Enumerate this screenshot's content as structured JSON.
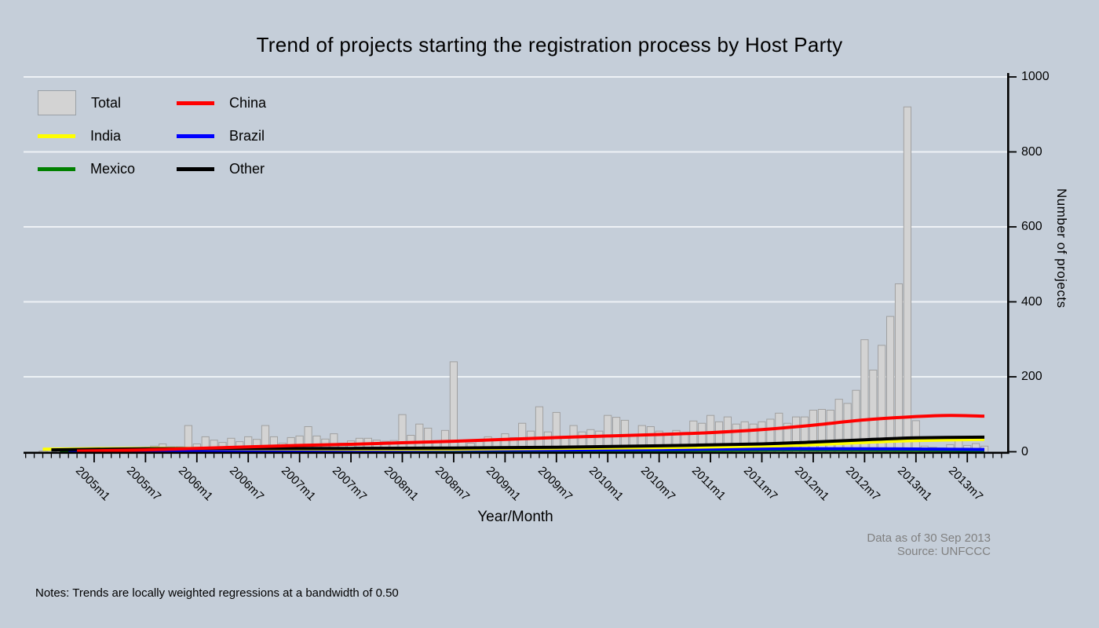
{
  "title": "Trend of projects starting the registration process by Host Party",
  "notes": "Notes: Trends are locally weighted regressions at a bandwidth of 0.50",
  "captions": {
    "data_as_of": "Data as of 30 Sep 2013",
    "source": "Source: UNFCCC"
  },
  "colors": {
    "background": "#c5ced9",
    "grid": "#eef2f6",
    "axis": "#000000",
    "bar_fill": "#d3d3d3",
    "bar_stroke": "#a0a0a0",
    "caption_text": "#808080"
  },
  "legend": {
    "items": [
      {
        "label": "Total",
        "type": "bar",
        "color": "#d3d3d3"
      },
      {
        "label": "China",
        "type": "line",
        "color": "#ff0000"
      },
      {
        "label": "India",
        "type": "line",
        "color": "#ffff00"
      },
      {
        "label": "Brazil",
        "type": "line",
        "color": "#0000ff"
      },
      {
        "label": "Mexico",
        "type": "line",
        "color": "#008000"
      },
      {
        "label": "Other",
        "type": "line",
        "color": "#000000"
      }
    ]
  },
  "chart_data": {
    "type": "bar",
    "title": "Trend of projects starting the registration process by Host Party",
    "xlabel": "Year/Month",
    "ylabel": "Number of projects",
    "ylim": [
      0,
      1000
    ],
    "yticks": [
      0,
      200,
      400,
      600,
      800,
      1000
    ],
    "grid": true,
    "legend_position": "top-left",
    "x_tick_labels": [
      "2005m1",
      "2005m7",
      "2006m1",
      "2006m7",
      "2007m1",
      "2007m7",
      "2008m1",
      "2008m7",
      "2009m1",
      "2009m7",
      "2010m1",
      "2010m7",
      "2011m1",
      "2011m7",
      "2012m1",
      "2012m7",
      "2013m1",
      "2013m7"
    ],
    "categories": [
      "2004m7",
      "2004m8",
      "2004m9",
      "2004m10",
      "2004m11",
      "2004m12",
      "2005m1",
      "2005m2",
      "2005m3",
      "2005m4",
      "2005m5",
      "2005m6",
      "2005m7",
      "2005m8",
      "2005m9",
      "2005m10",
      "2005m11",
      "2005m12",
      "2006m1",
      "2006m2",
      "2006m3",
      "2006m4",
      "2006m5",
      "2006m6",
      "2006m7",
      "2006m8",
      "2006m9",
      "2006m10",
      "2006m11",
      "2006m12",
      "2007m1",
      "2007m2",
      "2007m3",
      "2007m4",
      "2007m5",
      "2007m6",
      "2007m7",
      "2007m8",
      "2007m9",
      "2007m10",
      "2007m11",
      "2007m12",
      "2008m1",
      "2008m2",
      "2008m3",
      "2008m4",
      "2008m5",
      "2008m6",
      "2008m7",
      "2008m8",
      "2008m9",
      "2008m10",
      "2008m11",
      "2008m12",
      "2009m1",
      "2009m2",
      "2009m3",
      "2009m4",
      "2009m5",
      "2009m6",
      "2009m7",
      "2009m8",
      "2009m9",
      "2009m10",
      "2009m11",
      "2009m12",
      "2010m1",
      "2010m2",
      "2010m3",
      "2010m4",
      "2010m5",
      "2010m6",
      "2010m7",
      "2010m8",
      "2010m9",
      "2010m10",
      "2010m11",
      "2010m12",
      "2011m1",
      "2011m2",
      "2011m3",
      "2011m4",
      "2011m5",
      "2011m6",
      "2011m7",
      "2011m8",
      "2011m9",
      "2011m10",
      "2011m11",
      "2011m12",
      "2012m1",
      "2012m2",
      "2012m3",
      "2012m4",
      "2012m5",
      "2012m6",
      "2012m7",
      "2012m8",
      "2012m9",
      "2012m10",
      "2012m11",
      "2012m12",
      "2013m1",
      "2013m2",
      "2013m3",
      "2013m4",
      "2013m5",
      "2013m6",
      "2013m7",
      "2013m8",
      "2013m9"
    ],
    "bars": {
      "name": "Total",
      "values": [
        2,
        3,
        2,
        4,
        3,
        5,
        5,
        4,
        6,
        8,
        8,
        10,
        12,
        15,
        21,
        13,
        13,
        70,
        21,
        40,
        31,
        25,
        36,
        27,
        40,
        33,
        70,
        40,
        23,
        38,
        42,
        67,
        42,
        34,
        48,
        23,
        29,
        36,
        36,
        31,
        28,
        30,
        99,
        44,
        74,
        63,
        27,
        57,
        240,
        27,
        23,
        27,
        40,
        31,
        48,
        38,
        76,
        55,
        120,
        53,
        105,
        38,
        70,
        53,
        59,
        55,
        97,
        92,
        84,
        42,
        70,
        67,
        55,
        48,
        57,
        50,
        82,
        76,
        97,
        80,
        93,
        74,
        80,
        74,
        80,
        87,
        103,
        76,
        93,
        93,
        111,
        113,
        111,
        140,
        129,
        164,
        299,
        218,
        284,
        361,
        448,
        920,
        83,
        15,
        12,
        10,
        19,
        30,
        17,
        22,
        15
      ]
    },
    "series": [
      {
        "name": "Mexico",
        "color": "#008000",
        "points": [
          [
            2,
            3
          ],
          [
            12,
            4
          ],
          [
            24,
            4
          ],
          [
            36,
            5
          ],
          [
            48,
            4
          ],
          [
            60,
            4
          ],
          [
            72,
            4
          ],
          [
            84,
            5
          ],
          [
            96,
            5
          ],
          [
            110,
            4
          ]
        ]
      },
      {
        "name": "Brazil",
        "color": "#0000ff",
        "points": [
          [
            3,
            2
          ],
          [
            12,
            3
          ],
          [
            24,
            4
          ],
          [
            36,
            4
          ],
          [
            48,
            5
          ],
          [
            60,
            5
          ],
          [
            72,
            6
          ],
          [
            84,
            8
          ],
          [
            96,
            8
          ],
          [
            110,
            6
          ]
        ]
      },
      {
        "name": "India",
        "color": "#ffff00",
        "points": [
          [
            0,
            7
          ],
          [
            12,
            9
          ],
          [
            24,
            8
          ],
          [
            36,
            7
          ],
          [
            48,
            7
          ],
          [
            60,
            9
          ],
          [
            72,
            11
          ],
          [
            84,
            15
          ],
          [
            90,
            19
          ],
          [
            96,
            25
          ],
          [
            102,
            30
          ],
          [
            110,
            33
          ]
        ]
      },
      {
        "name": "Other",
        "color": "#000000",
        "points": [
          [
            1,
            5
          ],
          [
            12,
            8
          ],
          [
            24,
            9
          ],
          [
            36,
            9
          ],
          [
            48,
            10
          ],
          [
            60,
            12
          ],
          [
            72,
            16
          ],
          [
            84,
            21
          ],
          [
            90,
            26
          ],
          [
            96,
            32
          ],
          [
            102,
            37
          ],
          [
            110,
            39
          ]
        ]
      },
      {
        "name": "China",
        "color": "#ff0000",
        "points": [
          [
            4,
            2
          ],
          [
            12,
            5
          ],
          [
            18,
            9
          ],
          [
            24,
            13
          ],
          [
            30,
            17
          ],
          [
            36,
            20
          ],
          [
            42,
            24
          ],
          [
            48,
            28
          ],
          [
            54,
            33
          ],
          [
            60,
            38
          ],
          [
            66,
            42
          ],
          [
            72,
            46
          ],
          [
            78,
            51
          ],
          [
            84,
            59
          ],
          [
            90,
            71
          ],
          [
            96,
            85
          ],
          [
            102,
            94
          ],
          [
            106,
            97
          ],
          [
            110,
            95
          ]
        ]
      }
    ]
  }
}
